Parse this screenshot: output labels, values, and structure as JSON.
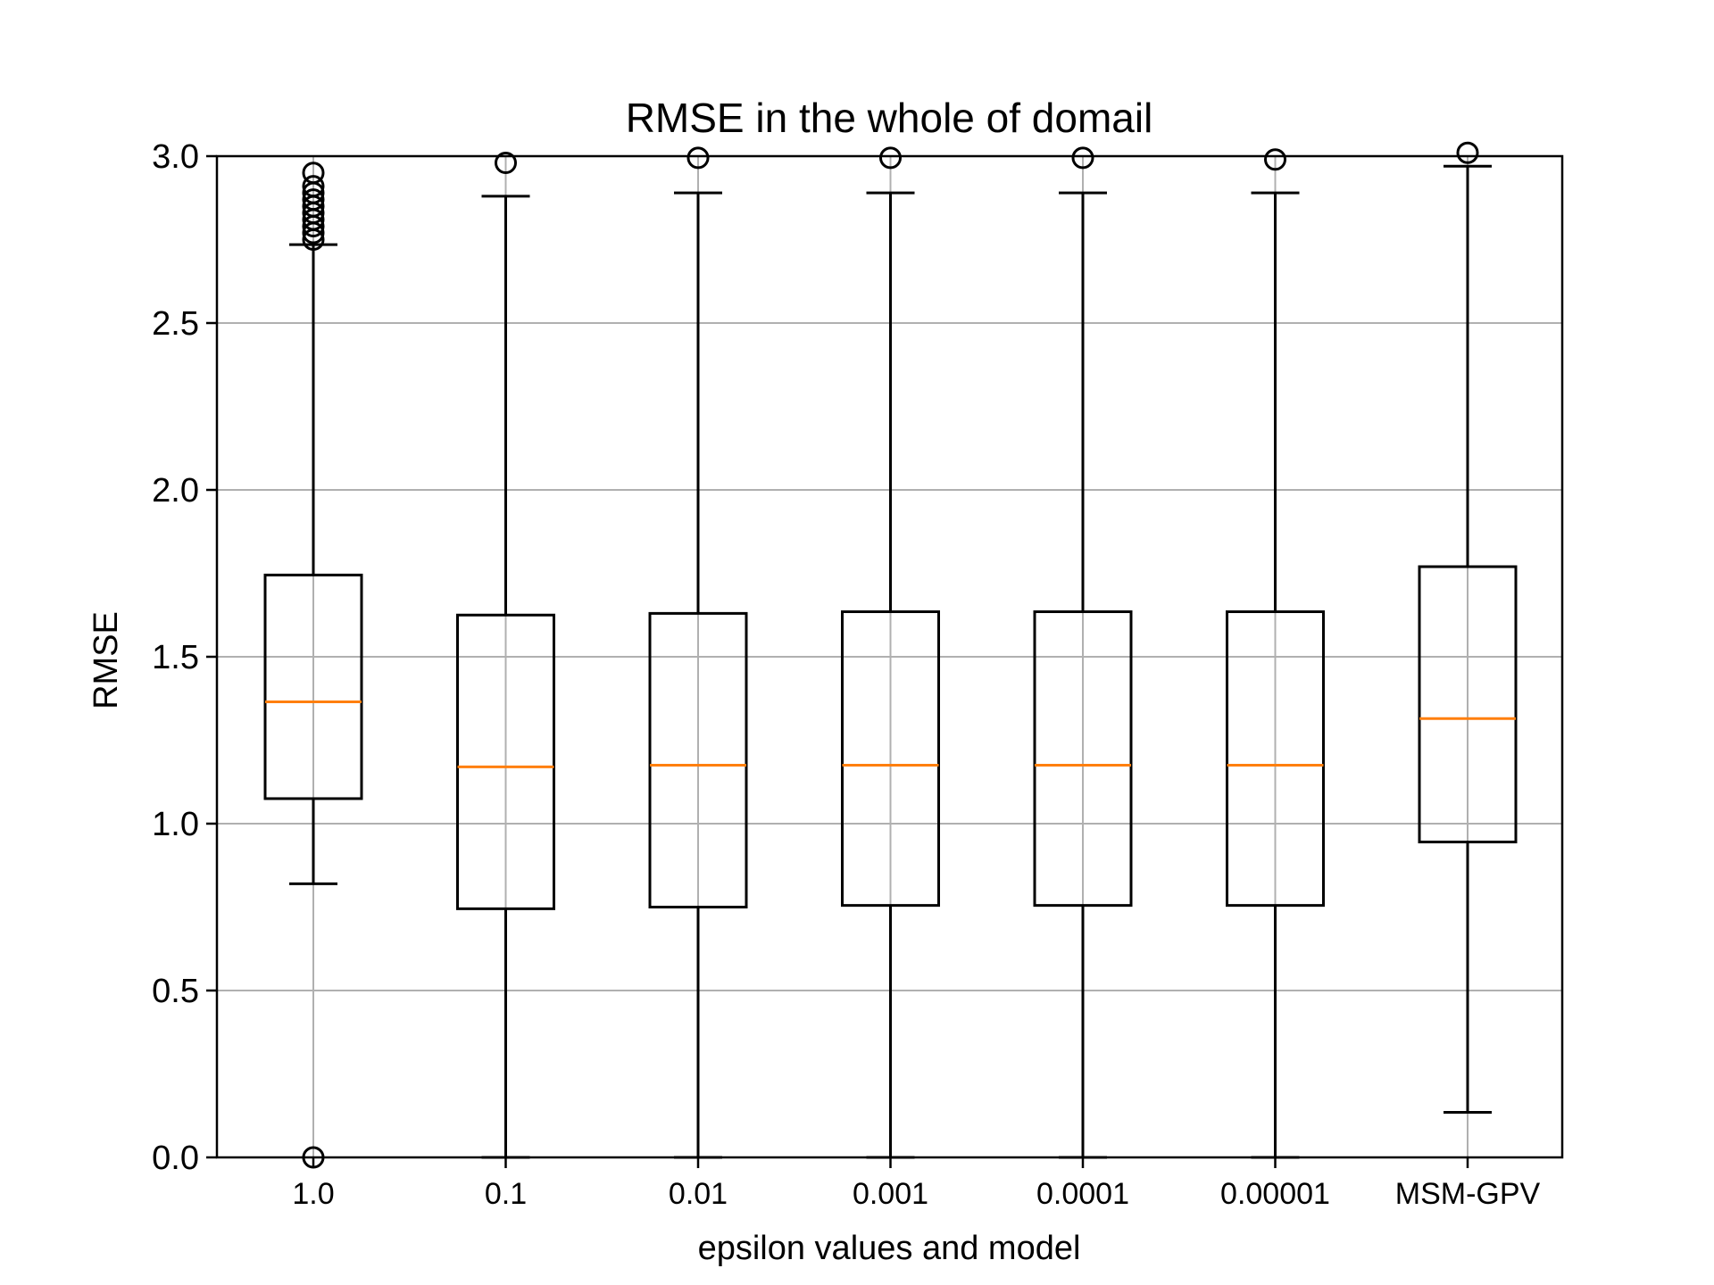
{
  "chart_data": {
    "type": "box",
    "title": "RMSE in the whole of domail",
    "xlabel": "epsilon values and model",
    "ylabel": "RMSE",
    "ylim": [
      0.0,
      3.0
    ],
    "yticks": [
      "0.0",
      "0.5",
      "1.0",
      "1.5",
      "2.0",
      "2.5",
      "3.0"
    ],
    "grid": true,
    "colors": {
      "box": "#000000",
      "median": "#ff7f0e",
      "grid": "#b0b0b0"
    },
    "categories": [
      "1.0",
      "0.1",
      "0.01",
      "0.001",
      "0.0001",
      "0.00001",
      "MSM-GPV"
    ],
    "boxes": [
      {
        "whisker_low": 0.82,
        "q1": 1.075,
        "median": 1.365,
        "q3": 1.745,
        "whisker_high": 2.735,
        "outliers": [
          0.0,
          2.75,
          2.77,
          2.79,
          2.81,
          2.83,
          2.85,
          2.87,
          2.89,
          2.91,
          2.95
        ]
      },
      {
        "whisker_low": 0.0,
        "q1": 0.745,
        "median": 1.17,
        "q3": 1.625,
        "whisker_high": 2.88,
        "outliers": [
          2.98
        ]
      },
      {
        "whisker_low": 0.0,
        "q1": 0.75,
        "median": 1.175,
        "q3": 1.63,
        "whisker_high": 2.89,
        "outliers": [
          2.995
        ]
      },
      {
        "whisker_low": 0.0,
        "q1": 0.755,
        "median": 1.175,
        "q3": 1.635,
        "whisker_high": 2.89,
        "outliers": [
          2.995
        ]
      },
      {
        "whisker_low": 0.0,
        "q1": 0.755,
        "median": 1.175,
        "q3": 1.635,
        "whisker_high": 2.89,
        "outliers": [
          2.995
        ]
      },
      {
        "whisker_low": 0.0,
        "q1": 0.755,
        "median": 1.175,
        "q3": 1.635,
        "whisker_high": 2.89,
        "outliers": [
          2.99
        ]
      },
      {
        "whisker_low": 0.135,
        "q1": 0.945,
        "median": 1.315,
        "q3": 1.77,
        "whisker_high": 2.97,
        "outliers": [
          3.01
        ]
      }
    ]
  }
}
